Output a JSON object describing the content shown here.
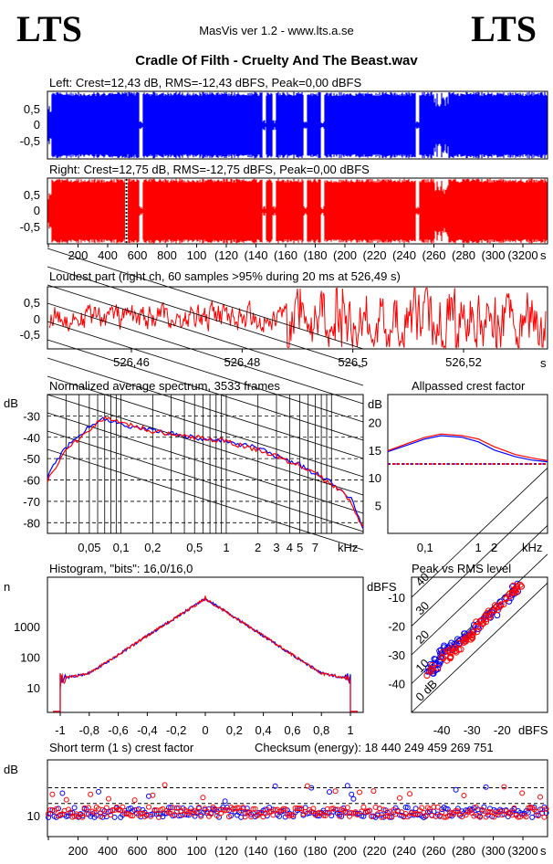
{
  "header": {
    "logo_left": "LTS",
    "logo_right": "LTS",
    "app": "MasVis ver 1.2 - www.lts.a.se",
    "file": "Cradle Of Filth - Cruelty And The Beast.wav"
  },
  "left": {
    "title": "Left: Crest=12,43 dB, RMS=-12,43 dBFS, Peak=0,00 dBFS",
    "color": "#0000ff",
    "yticks": [
      "0,5",
      "0",
      "-0,5"
    ]
  },
  "right": {
    "title": "Right: Crest=12,75 dB, RMS=-12,75 dBFS, Peak=0,00 dBFS",
    "color": "#ff0000",
    "yticks": [
      "0,5",
      "0",
      "-0,5"
    ],
    "xticks": [
      "200",
      "400",
      "600",
      "800",
      "1000",
      "1200",
      "1400",
      "1600",
      "1800",
      "2000",
      "2200",
      "2400",
      "2600",
      "2800",
      "3000",
      "3200"
    ],
    "xtick_labels": [
      "200",
      "400",
      "600",
      "800",
      "100",
      "(120",
      "(140",
      "(160",
      "(180",
      "(200",
      "(220",
      "(240",
      "(260",
      "(280",
      "(300",
      "(3200"
    ],
    "unit": "s"
  },
  "loudest": {
    "title": "Loudest part (right ch, 60 samples >95% during 20 ms at 526,49 s)",
    "yticks": [
      "0,5",
      "0",
      "-0,5"
    ],
    "xtick_labels": [
      "526,46",
      "526,48",
      "526,5",
      "526,52"
    ],
    "unit": "s"
  },
  "spectrum": {
    "title": "Normalized average spectrum, 3533 frames",
    "ylabel": "dB",
    "yticks": [
      "-30",
      "-40",
      "-50",
      "-60",
      "-70",
      "-80"
    ],
    "xtick_labels": [
      "0,05",
      "0,1",
      "0,2",
      "0,5",
      "1",
      "2",
      "3",
      "4",
      "5",
      "7"
    ],
    "unit": "kHz"
  },
  "crest_ap": {
    "title": "Allpassed crest factor",
    "ylabel": "dB",
    "yticks": [
      "20",
      "15",
      "10",
      "5"
    ],
    "xtick_labels": [
      "0,1",
      "1",
      "2"
    ],
    "unit": "kHz"
  },
  "histogram": {
    "title": "Histogram, \"bits\": 16,0/16,0",
    "ylabel": "n",
    "yticks": [
      "1000",
      "100",
      "10"
    ],
    "xtick_labels": [
      "-1",
      "-0,8",
      "-0,6",
      "-0,4",
      "-0,2",
      "0",
      "0,2",
      "0,4",
      "0,6",
      "0,8",
      "1"
    ]
  },
  "peakrms": {
    "title": "Peak vs RMS level",
    "ylabel": "dBFS",
    "yticks": [
      "-10",
      "-20",
      "-30",
      "-40"
    ],
    "xtick_labels": [
      "-40",
      "-30",
      "-20"
    ],
    "unit": "dBFS",
    "diag_labels": [
      "40",
      "30",
      "20",
      "10",
      "0 dB"
    ]
  },
  "shortcrest": {
    "title": "Short term (1 s) crest factor",
    "checksum": "Checksum (energy):  18 440 249 459 269 751",
    "ylabel": "dB",
    "yticks": [
      "10"
    ],
    "xtick_labels": [
      "200",
      "400",
      "600",
      "800",
      "100",
      "(120",
      "(140",
      "(160",
      "(180",
      "(200",
      "(220",
      "(240",
      "(260",
      "(280",
      "(300",
      "(3200"
    ],
    "unit": "s"
  },
  "chart_data": [
    {
      "type": "area",
      "title": "Left: Crest=12,43 dB, RMS=-12,43 dBFS, Peak=0,00 dBFS",
      "xlim": [
        0,
        3360
      ],
      "ylim": [
        -1,
        1
      ],
      "series": [
        {
          "name": "Left",
          "gaps_s": [
            625,
            1455,
            1525,
            1730,
            1850,
            2490
          ],
          "envelope": "full scale ±0,9 to ±1,0"
        }
      ]
    },
    {
      "type": "area",
      "title": "Right: Crest=12,75 dB, RMS=-12,75 dBFS, Peak=0,00 dBFS",
      "xlim": [
        0,
        3360
      ],
      "ylim": [
        -1,
        1
      ],
      "series": [
        {
          "name": "Right",
          "marker_s": 526.49
        }
      ]
    },
    {
      "type": "line",
      "title": "Loudest part (right ch, 60 samples >95% during 20 ms at 526,49 s)",
      "x": [
        526.445,
        526.46,
        526.48,
        526.5,
        526.52,
        526.535
      ],
      "ylim": [
        -1,
        1
      ]
    },
    {
      "type": "line",
      "title": "Normalized average spectrum, 3533 frames",
      "xlabel": "kHz",
      "ylabel": "dB",
      "x": [
        0.02,
        0.03,
        0.05,
        0.07,
        0.1,
        0.2,
        0.5,
        1,
        2,
        3,
        5,
        7,
        10,
        15,
        20
      ],
      "series": [
        {
          "name": "Left",
          "values": [
            -58,
            -45,
            -35,
            -31,
            -34,
            -37,
            -40,
            -42,
            -45,
            -49,
            -53,
            -57,
            -61,
            -68,
            -82
          ]
        },
        {
          "name": "Right",
          "values": [
            -60,
            -46,
            -36,
            -31,
            -33,
            -37,
            -40,
            -42,
            -46,
            -49,
            -53,
            -57,
            -62,
            -69,
            -83
          ]
        }
      ]
    },
    {
      "type": "line",
      "title": "Allpassed crest factor",
      "xlabel": "kHz",
      "ylabel": "dB",
      "x": [
        0.02,
        0.05,
        0.1,
        0.2,
        0.5,
        1,
        2,
        5,
        10,
        20
      ],
      "series": [
        {
          "name": "Left",
          "values": [
            14.7,
            16,
            17,
            17.6,
            17.3,
            16.5,
            15,
            13.8,
            13.2,
            12.9
          ]
        },
        {
          "name": "Right",
          "values": [
            14.9,
            16.3,
            17.3,
            17.9,
            17.6,
            17,
            15.6,
            14.2,
            13.6,
            13.1
          ]
        }
      ],
      "reference_line": 12.5
    },
    {
      "type": "line",
      "title": "Histogram, \"bits\": 16,0/16,0",
      "ylabel": "n",
      "yscale": "log",
      "x": [
        -1,
        -0.8,
        -0.6,
        -0.4,
        -0.2,
        0,
        0.2,
        0.4,
        0.6,
        0.8,
        1
      ],
      "series": [
        {
          "name": "Left",
          "values": [
            20,
            30,
            120,
            500,
            2000,
            8000,
            2000,
            500,
            120,
            30,
            20
          ]
        },
        {
          "name": "Right",
          "values": [
            20,
            30,
            120,
            500,
            2000,
            8000,
            2000,
            500,
            120,
            30,
            20
          ]
        }
      ]
    },
    {
      "type": "scatter",
      "title": "Peak vs RMS level",
      "xlabel": "dBFS",
      "ylabel": "dBFS",
      "series": [
        {
          "name": "Left",
          "x": [
            -44,
            -42,
            -38,
            -34,
            -30,
            -26,
            -22,
            -18,
            -15
          ],
          "y": [
            -36,
            -33,
            -28,
            -25,
            -22,
            -18,
            -14,
            -10,
            -6
          ]
        },
        {
          "name": "Right",
          "x": [
            -45,
            -41,
            -37,
            -33,
            -29,
            -25,
            -21,
            -17,
            -14
          ],
          "y": [
            -37,
            -32,
            -29,
            -26,
            -21,
            -17,
            -13,
            -9,
            -5
          ]
        }
      ]
    },
    {
      "type": "scatter",
      "title": "Short term (1 s) crest factor",
      "xlabel": "s",
      "ylabel": "dB",
      "xlim": [
        0,
        3360
      ],
      "series": [
        {
          "name": "Left",
          "typical": 11
        },
        {
          "name": "Right",
          "typical": 11
        }
      ]
    }
  ]
}
